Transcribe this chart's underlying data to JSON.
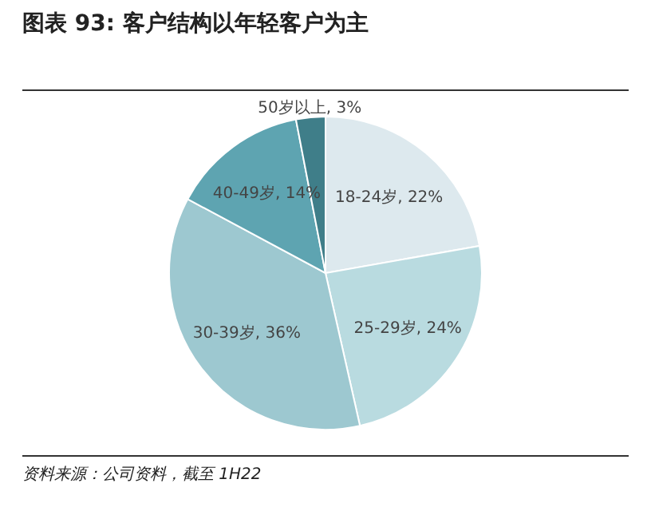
{
  "chart_data": {
    "type": "pie",
    "title": "图表 93: 客户结构以年轻客户为主",
    "categories": [
      "18-24岁",
      "25-29岁",
      "30-39岁",
      "40-49岁",
      "50岁以上"
    ],
    "values": [
      22,
      24,
      36,
      14,
      3
    ],
    "colors": [
      "#dde9ee",
      "#b9dbe0",
      "#9dc8d0",
      "#5ea4b1",
      "#3f7e89"
    ],
    "value_labels": [
      "22%",
      "24%",
      "36%",
      "14%",
      "3%"
    ],
    "annotations": [
      "资料来源：公司资料，截至 1H22"
    ]
  }
}
